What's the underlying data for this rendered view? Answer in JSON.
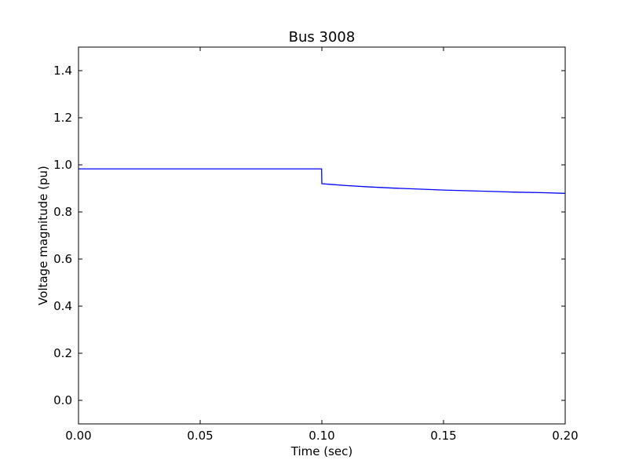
{
  "chart_data": {
    "type": "line",
    "title": "Bus 3008",
    "xlabel": "Time (sec)",
    "ylabel": "Voltage magnitude (pu)",
    "xlim": [
      0.0,
      0.2
    ],
    "ylim": [
      -0.1,
      1.5
    ],
    "xticks": [
      0.0,
      0.05,
      0.1,
      0.15,
      0.2
    ],
    "xtick_labels": [
      "0.00",
      "0.05",
      "0.10",
      "0.15",
      "0.20"
    ],
    "yticks": [
      0.0,
      0.2,
      0.4,
      0.6,
      0.8,
      1.0,
      1.2,
      1.4
    ],
    "ytick_labels": [
      "0.0",
      "0.2",
      "0.4",
      "0.6",
      "0.8",
      "1.0",
      "1.2",
      "1.4"
    ],
    "grid": false,
    "legend": "none",
    "line_color": "#0000ff",
    "series": [
      {
        "x": [
          0.0,
          0.0999,
          0.1,
          0.105,
          0.11,
          0.12,
          0.13,
          0.14,
          0.15,
          0.16,
          0.17,
          0.18,
          0.19,
          0.2
        ],
        "y": [
          0.983,
          0.983,
          0.92,
          0.916,
          0.912,
          0.906,
          0.901,
          0.897,
          0.893,
          0.89,
          0.887,
          0.884,
          0.882,
          0.879
        ]
      }
    ]
  }
}
